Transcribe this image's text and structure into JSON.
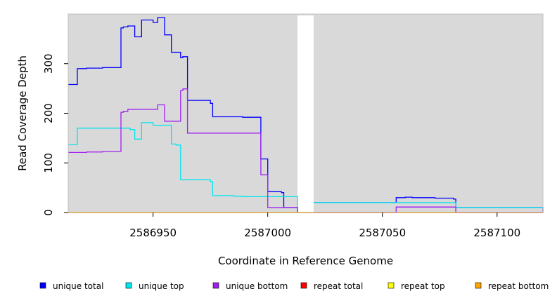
{
  "chart_data": {
    "type": "line",
    "step": true,
    "xlabel": "Coordinate in Reference Genome",
    "ylabel": "Read Coverage Depth",
    "xlim": [
      2586913,
      2587120
    ],
    "ylim": [
      0,
      400
    ],
    "x_ticks": [
      2586950,
      2587000,
      2587050,
      2587100
    ],
    "x_tick_labels": [
      "2586950",
      "2587000",
      "2587050",
      "2587100"
    ],
    "y_ticks": [
      0,
      100,
      200,
      300
    ],
    "y_tick_labels": [
      "0",
      "100",
      "200",
      "300"
    ],
    "background_color": "#d9d9d9",
    "gap": [
      2587013,
      2587020
    ],
    "legend_position": "bottom",
    "series": [
      {
        "name": "unique total",
        "color": "#0000ff",
        "points": [
          [
            2586913,
            258
          ],
          [
            2586917,
            290
          ],
          [
            2586921,
            291
          ],
          [
            2586928,
            292
          ],
          [
            2586936,
            372
          ],
          [
            2586937,
            374
          ],
          [
            2586939,
            376
          ],
          [
            2586942,
            354
          ],
          [
            2586945,
            388
          ],
          [
            2586950,
            383
          ],
          [
            2586952,
            393
          ],
          [
            2586955,
            358
          ],
          [
            2586958,
            323
          ],
          [
            2586962,
            312
          ],
          [
            2586963,
            314
          ],
          [
            2586965,
            226
          ],
          [
            2586975,
            220
          ],
          [
            2586976,
            193
          ],
          [
            2586985,
            193
          ],
          [
            2586989,
            192
          ],
          [
            2586997,
            108
          ],
          [
            2587000,
            42
          ],
          [
            2587006,
            40
          ],
          [
            2587007,
            10
          ],
          [
            2587013,
            0
          ]
        ]
      },
      {
        "name": "unique top",
        "color": "#00e5ee",
        "points": [
          [
            2586913,
            137
          ],
          [
            2586917,
            170
          ],
          [
            2586936,
            170
          ],
          [
            2586940,
            167
          ],
          [
            2586942,
            148
          ],
          [
            2586945,
            181
          ],
          [
            2586950,
            176
          ],
          [
            2586958,
            138
          ],
          [
            2586960,
            136
          ],
          [
            2586962,
            66
          ],
          [
            2586975,
            62
          ],
          [
            2586976,
            34
          ],
          [
            2586985,
            33
          ],
          [
            2586989,
            32
          ],
          [
            2586997,
            32
          ],
          [
            2587000,
            32
          ],
          [
            2587013,
            0
          ]
        ]
      },
      {
        "name": "unique bottom",
        "color": "#a020f0",
        "points": [
          [
            2586913,
            121
          ],
          [
            2586921,
            122
          ],
          [
            2586928,
            123
          ],
          [
            2586936,
            202
          ],
          [
            2586937,
            204
          ],
          [
            2586939,
            208
          ],
          [
            2586952,
            217
          ],
          [
            2586955,
            184
          ],
          [
            2586962,
            246
          ],
          [
            2586963,
            249
          ],
          [
            2586965,
            160
          ],
          [
            2586989,
            160
          ],
          [
            2586997,
            76
          ],
          [
            2587000,
            10
          ],
          [
            2587013,
            0
          ]
        ]
      },
      {
        "name": "repeat total",
        "color": "#ff0000",
        "points": [
          [
            2586913,
            0
          ],
          [
            2587120,
            0
          ]
        ]
      },
      {
        "name": "repeat top",
        "color": "#ffff00",
        "points": [
          [
            2586913,
            0
          ],
          [
            2587120,
            0
          ]
        ]
      },
      {
        "name": "repeat bottom",
        "color": "#ffa500",
        "points": [
          [
            2586913,
            0
          ],
          [
            2587120,
            0
          ]
        ]
      },
      {
        "name": "unique total",
        "segment": "right",
        "color": "#0000ff",
        "points": [
          [
            2587020,
            20
          ],
          [
            2587056,
            30
          ],
          [
            2587060,
            31
          ],
          [
            2587063,
            30
          ],
          [
            2587073,
            29
          ],
          [
            2587081,
            27
          ],
          [
            2587082,
            10
          ],
          [
            2587119,
            10
          ],
          [
            2587120,
            0
          ]
        ]
      },
      {
        "name": "unique top",
        "segment": "right",
        "color": "#00e5ee",
        "points": [
          [
            2587020,
            20
          ],
          [
            2587056,
            20
          ],
          [
            2587082,
            10
          ],
          [
            2587120,
            10
          ]
        ]
      },
      {
        "name": "unique bottom",
        "segment": "right",
        "color": "#a020f0",
        "points": [
          [
            2587020,
            0
          ],
          [
            2587056,
            11
          ],
          [
            2587082,
            0
          ],
          [
            2587120,
            0
          ]
        ]
      }
    ],
    "legend": [
      {
        "label": "unique total",
        "color": "#0000ff"
      },
      {
        "label": "unique top",
        "color": "#00e5ee"
      },
      {
        "label": "unique bottom",
        "color": "#a020f0"
      },
      {
        "label": "repeat total",
        "color": "#ff0000"
      },
      {
        "label": "repeat top",
        "color": "#ffff00"
      },
      {
        "label": "repeat bottom",
        "color": "#ffa500"
      }
    ]
  }
}
